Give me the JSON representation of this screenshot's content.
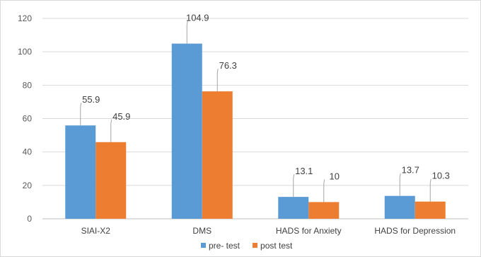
{
  "chart_data": {
    "type": "bar",
    "categories": [
      "SIAI-X2",
      "DMS",
      "HADS for Anxiety",
      "HADS for Depression"
    ],
    "series": [
      {
        "name": "pre- test",
        "values": [
          55.9,
          104.9,
          13.1,
          13.7
        ],
        "color": "#5b9bd5"
      },
      {
        "name": "post test",
        "values": [
          45.9,
          76.3,
          10,
          10.3
        ],
        "color": "#ed7d31"
      }
    ],
    "data_labels": [
      [
        "55.9",
        "104.9",
        "13.1",
        "13.7"
      ],
      [
        "45.9",
        "76.3",
        "10",
        "10.3"
      ]
    ],
    "y_ticks": [
      "0",
      "20",
      "40",
      "60",
      "80",
      "100",
      "120"
    ],
    "ylim": [
      0,
      120
    ],
    "grid": true,
    "legend_position": "bottom"
  }
}
